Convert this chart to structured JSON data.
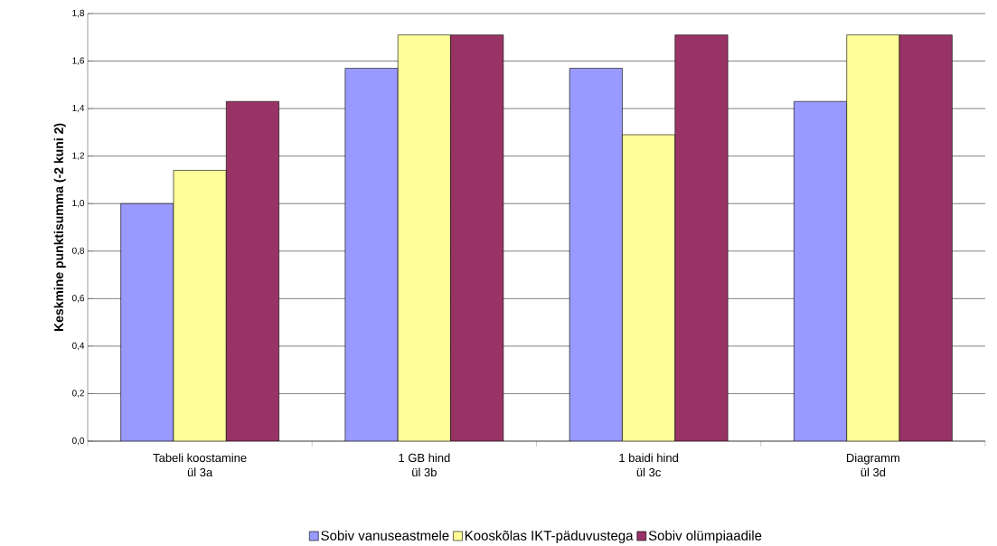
{
  "chart_data": {
    "type": "bar",
    "ylabel": "Keskmine punktisumma (-2 kuni 2)",
    "categories": [
      "Tabeli koostamine\nül 3a",
      "1 GB hind\nül 3b",
      "1 baidi hind\nül 3c",
      "Diagramm\nül 3d"
    ],
    "series": [
      {
        "name": "Sobiv vanuseastmele",
        "color": "#9999ff",
        "values": [
          1.0,
          1.57,
          1.57,
          1.43
        ]
      },
      {
        "name": "Kooskõlas IKT-päduvustega",
        "color": "#ffff99",
        "values": [
          1.14,
          1.71,
          1.29,
          1.71
        ]
      },
      {
        "name": "Sobiv olümpiaadile",
        "color": "#993366",
        "values": [
          1.43,
          1.71,
          1.71,
          1.71
        ]
      }
    ],
    "ylim": [
      0,
      1.8
    ],
    "yticks": [
      {
        "value": 0,
        "label": "0,0"
      },
      {
        "value": 0.2,
        "label": "0,2"
      },
      {
        "value": 0.4,
        "label": "0,4"
      },
      {
        "value": 0.6,
        "label": "0,6"
      },
      {
        "value": 0.8,
        "label": "0,8"
      },
      {
        "value": 1.0,
        "label": "1,0"
      },
      {
        "value": 1.2,
        "label": "1,2"
      },
      {
        "value": 1.4,
        "label": "1,4"
      },
      {
        "value": 1.6,
        "label": "1,6"
      },
      {
        "value": 1.8,
        "label": "1,8"
      }
    ],
    "grid": "y",
    "legend": "bottom"
  }
}
